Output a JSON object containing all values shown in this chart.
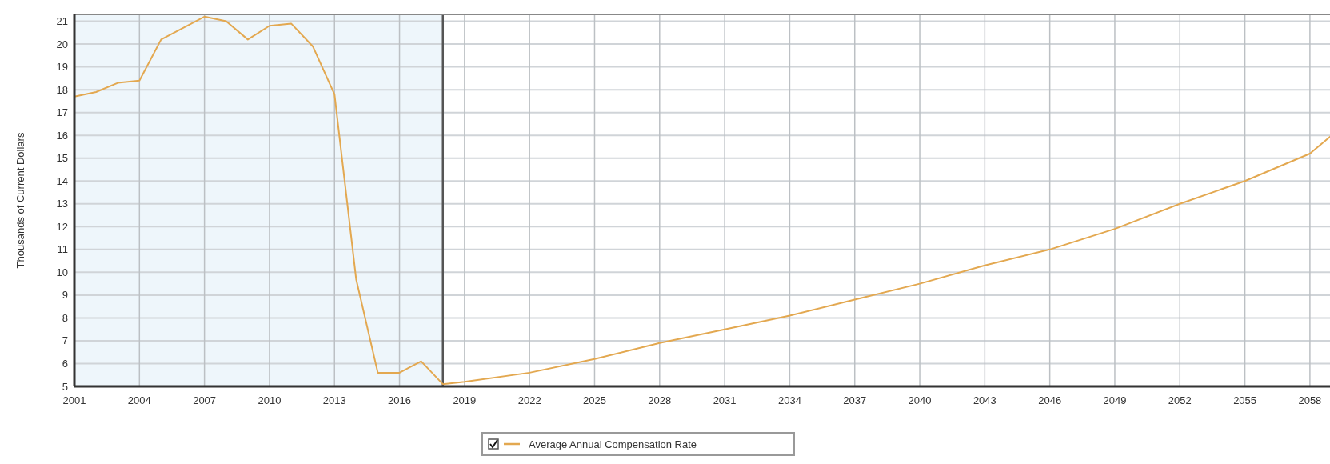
{
  "chart_data": {
    "type": "line",
    "ylabel": "Thousands of Current Dollars",
    "x": [
      2001,
      2002,
      2003,
      2004,
      2005,
      2006,
      2007,
      2008,
      2009,
      2010,
      2011,
      2012,
      2013,
      2014,
      2015,
      2016,
      2017,
      2018,
      2019,
      2022,
      2025,
      2028,
      2031,
      2034,
      2037,
      2040,
      2043,
      2046,
      2049,
      2052,
      2055,
      2058,
      2059
    ],
    "series": [
      {
        "name": "Average Annual Compensation Rate",
        "color": "#e3a850",
        "values": [
          17.7,
          17.9,
          18.3,
          18.4,
          20.2,
          20.7,
          21.2,
          21.0,
          20.2,
          20.8,
          20.9,
          19.9,
          17.8,
          9.7,
          5.6,
          5.6,
          6.1,
          5.1,
          5.2,
          5.6,
          6.2,
          6.9,
          7.5,
          8.1,
          8.8,
          9.5,
          10.3,
          11.0,
          11.9,
          13.0,
          14.0,
          15.2,
          16.0
        ]
      }
    ],
    "xlim": [
      2001,
      2059
    ],
    "xticks": [
      2001,
      2004,
      2007,
      2010,
      2013,
      2016,
      2019,
      2022,
      2025,
      2028,
      2031,
      2034,
      2037,
      2040,
      2043,
      2046,
      2049,
      2052,
      2055,
      2058
    ],
    "ylim": [
      5,
      21.3
    ],
    "yticks": [
      5,
      6,
      7,
      8,
      9,
      10,
      11,
      12,
      13,
      14,
      15,
      16,
      17,
      18,
      19,
      20,
      21
    ],
    "bands": [
      {
        "axis": "x",
        "from": 2001,
        "to": 2018,
        "color": "#eef6fb"
      }
    ],
    "ref_lines": [
      {
        "axis": "x",
        "value": 2018,
        "color": "#555555"
      }
    ],
    "grid": true,
    "legend": "bottom",
    "marker": "none",
    "line_style": "solid"
  }
}
